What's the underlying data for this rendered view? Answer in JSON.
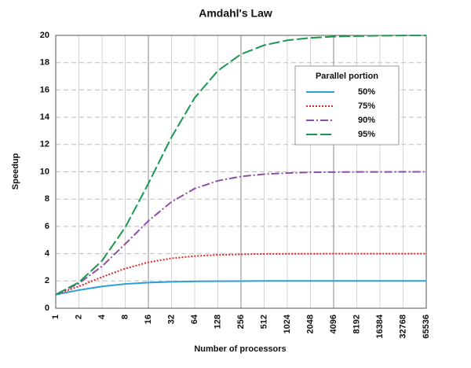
{
  "chart_data": {
    "type": "line",
    "title": "Amdahl's Law",
    "xlabel": "Number of processors",
    "ylabel": "Speedup",
    "x": [
      1,
      2,
      4,
      8,
      16,
      32,
      64,
      128,
      256,
      512,
      1024,
      2048,
      4096,
      8192,
      16384,
      32768,
      65536
    ],
    "xscale": "log",
    "xlim": [
      1,
      65536
    ],
    "xticks": [
      1,
      2,
      4,
      8,
      16,
      32,
      64,
      128,
      256,
      512,
      1024,
      2048,
      4096,
      8192,
      16384,
      32768,
      65536
    ],
    "ylim": [
      0,
      20
    ],
    "yticks": [
      0,
      2,
      4,
      6,
      8,
      10,
      12,
      14,
      16,
      18,
      20
    ],
    "grid": true,
    "legend_title": "Parallel portion",
    "legend_position": "upper right",
    "series": [
      {
        "name": "50%",
        "color": "#2e9fd6",
        "style": "solid",
        "values": [
          1,
          1.33,
          1.6,
          1.78,
          1.88,
          1.94,
          1.97,
          1.98,
          1.99,
          2.0,
          2.0,
          2.0,
          2.0,
          2.0,
          2.0,
          2.0,
          2.0
        ]
      },
      {
        "name": "75%",
        "color": "#d62728",
        "style": "dotted",
        "values": [
          1,
          1.6,
          2.29,
          2.91,
          3.37,
          3.66,
          3.82,
          3.91,
          3.95,
          3.98,
          3.99,
          3.99,
          4.0,
          4.0,
          4.0,
          4.0,
          4.0
        ]
      },
      {
        "name": "90%",
        "color": "#8e4ea8",
        "style": "dashdot",
        "values": [
          1,
          1.82,
          3.08,
          4.71,
          6.4,
          7.8,
          8.77,
          9.34,
          9.66,
          9.83,
          9.91,
          9.96,
          9.98,
          9.99,
          9.99,
          10.0,
          10.0
        ]
      },
      {
        "name": "95%",
        "color": "#1a9850",
        "style": "dashed",
        "values": [
          1,
          1.9,
          3.48,
          5.93,
          9.14,
          12.55,
          15.42,
          17.41,
          18.62,
          19.28,
          19.64,
          19.82,
          19.91,
          19.95,
          19.98,
          19.99,
          19.99
        ]
      }
    ]
  }
}
